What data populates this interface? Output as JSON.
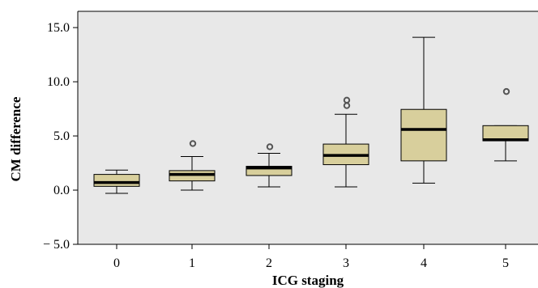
{
  "chart_data": {
    "type": "box",
    "xlabel": "ICG staging",
    "ylabel": "CM difference",
    "ylim": [
      -5.0,
      16.5
    ],
    "yticks": [
      "15.0",
      "10.0",
      "5.0",
      "0.0",
      "− 5.0"
    ],
    "ytick_values": [
      15,
      10,
      5,
      0,
      -5
    ],
    "grid": false,
    "colors": {
      "plot_bg": "#e8e8e8",
      "box_fill": "#d8cf9c",
      "box_stroke": "#000000"
    },
    "categories": [
      "0",
      "1",
      "2",
      "3",
      "4",
      "5"
    ],
    "boxes": [
      {
        "label": "0",
        "whisker_low": -0.3,
        "q1": 0.35,
        "median": 0.7,
        "q3": 1.45,
        "whisker_high": 1.85,
        "outliers": []
      },
      {
        "label": "1",
        "whisker_low": 0.0,
        "q1": 0.85,
        "median": 1.45,
        "q3": 1.8,
        "whisker_high": 3.1,
        "outliers": [
          4.3
        ]
      },
      {
        "label": "2",
        "whisker_low": 0.3,
        "q1": 1.35,
        "median": 2.05,
        "q3": 2.2,
        "whisker_high": 3.4,
        "outliers": [
          4.0
        ]
      },
      {
        "label": "3",
        "whisker_low": 0.3,
        "q1": 2.35,
        "median": 3.2,
        "q3": 4.25,
        "whisker_high": 7.0,
        "outliers": [
          7.8,
          8.3
        ]
      },
      {
        "label": "4",
        "whisker_low": 0.65,
        "q1": 2.7,
        "median": 5.6,
        "q3": 7.45,
        "whisker_high": 14.1,
        "outliers": []
      },
      {
        "label": "5",
        "whisker_low": 2.7,
        "q1": 4.55,
        "median": 4.65,
        "q3": 5.95,
        "whisker_high": 5.95,
        "outliers": [
          9.1
        ]
      }
    ]
  }
}
